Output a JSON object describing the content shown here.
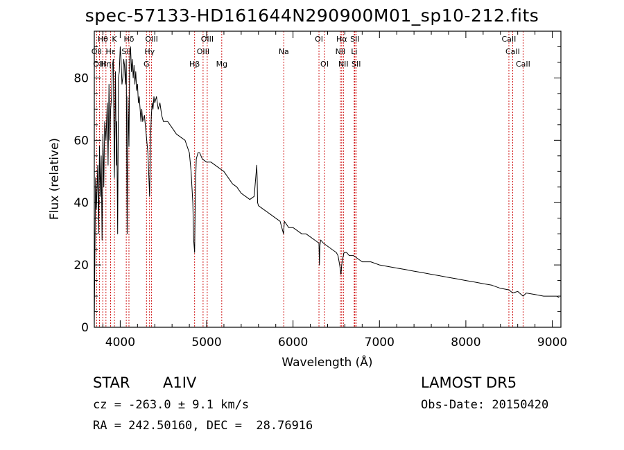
{
  "header": {
    "title": "spec-57133-HD161644N290900M01_sp10-212.fits"
  },
  "info": {
    "object_class": "STAR",
    "object_subclass": "A1IV",
    "survey": "LAMOST DR5",
    "redshift": "cz = -263.0 ± 9.1 km/s",
    "obs_date": "Obs-Date: 20150420",
    "coords": "RA = 242.50160, DEC =  28.76916"
  },
  "chart_data": {
    "type": "line",
    "title": "spec-57133-HD161644N290900M01_sp10-212.fits",
    "xlabel": "Wavelength (Å)",
    "ylabel": "Flux (relative)",
    "xlim": [
      3700,
      9100
    ],
    "ylim": [
      0,
      95
    ],
    "xticks": [
      4000,
      5000,
      6000,
      7000,
      8000,
      9000
    ],
    "yticks": [
      0,
      20,
      40,
      60,
      80
    ],
    "line_color": "#000000",
    "marker_color": "#cc0000",
    "series": [
      {
        "x": [
          3700,
          3715,
          3725,
          3740,
          3750,
          3760,
          3770,
          3780,
          3790,
          3800,
          3810,
          3820,
          3835,
          3850,
          3860,
          3870,
          3880,
          3889,
          3900,
          3910,
          3920,
          3933,
          3945,
          3955,
          3960,
          3970,
          3980,
          3990,
          4000,
          4010,
          4020,
          4030,
          4040,
          4050,
          4060,
          4070,
          4080,
          4090,
          4101,
          4110,
          4120,
          4130,
          4140,
          4150,
          4160,
          4170,
          4180,
          4190,
          4200,
          4210,
          4220,
          4230,
          4240,
          4250,
          4260,
          4280,
          4300,
          4320,
          4340,
          4350,
          4360,
          4370,
          4380,
          4390,
          4400,
          4420,
          4440,
          4460,
          4480,
          4500,
          4550,
          4600,
          4650,
          4700,
          4750,
          4800,
          4820,
          4840,
          4850,
          4861,
          4870,
          4880,
          4900,
          4920,
          4950,
          5000,
          5050,
          5100,
          5150,
          5200,
          5250,
          5300,
          5350,
          5400,
          5450,
          5500,
          5550,
          5580,
          5585,
          5590,
          5600,
          5650,
          5700,
          5750,
          5800,
          5850,
          5890,
          5900,
          5950,
          6000,
          6050,
          6100,
          6150,
          6200,
          6250,
          6300,
          6305,
          6310,
          6320,
          6350,
          6400,
          6450,
          6500,
          6520,
          6540,
          6555,
          6563,
          6575,
          6590,
          6620,
          6650,
          6700,
          6750,
          6800,
          6900,
          7000,
          7100,
          7200,
          7300,
          7400,
          7500,
          7600,
          7700,
          7800,
          7900,
          8000,
          8100,
          8200,
          8300,
          8400,
          8500,
          8542,
          8600,
          8662,
          8700,
          8800,
          8900,
          9000,
          9050,
          9080
        ],
        "y": [
          2,
          48,
          38,
          52,
          30,
          58,
          42,
          55,
          28,
          62,
          45,
          66,
          60,
          72,
          52,
          78,
          60,
          70,
          74,
          84,
          86,
          48,
          82,
          52,
          66,
          30,
          80,
          82,
          90,
          86,
          78,
          80,
          86,
          84,
          78,
          86,
          30,
          74,
          58,
          86,
          90,
          82,
          86,
          80,
          84,
          78,
          82,
          76,
          78,
          72,
          74,
          70,
          66,
          70,
          66,
          68,
          62,
          56,
          42,
          60,
          68,
          72,
          70,
          74,
          72,
          74,
          70,
          72,
          68,
          66,
          66,
          64,
          62,
          61,
          60,
          56,
          50,
          40,
          28,
          24,
          44,
          54,
          56,
          56,
          54,
          53,
          53,
          52,
          51,
          50,
          48,
          46,
          45,
          43,
          42,
          41,
          42,
          52,
          48,
          40,
          39,
          38,
          37,
          36,
          35,
          34,
          30,
          34,
          32,
          32,
          31,
          30,
          30,
          29,
          28,
          27,
          20,
          26,
          28,
          27,
          26,
          25,
          24,
          23,
          20,
          17,
          20,
          22,
          24,
          24,
          23,
          23,
          22,
          21,
          21,
          20,
          19.5,
          19,
          18.5,
          18,
          17.5,
          17,
          16.5,
          16,
          15.5,
          15,
          14.5,
          14,
          13.5,
          12.5,
          12,
          11,
          11.5,
          10,
          11,
          10.5,
          10,
          10,
          10,
          9.5
        ]
      }
    ],
    "lines": [
      {
        "label": "Hθ",
        "x": 3798,
        "row": 0
      },
      {
        "label": "OII",
        "x": 3727,
        "row": 1
      },
      {
        "label": "OIII",
        "x": 3760,
        "row": 2
      },
      {
        "label": "Hη",
        "x": 3835,
        "row": 2
      },
      {
        "label": "Hε",
        "x": 3889,
        "row": 1
      },
      {
        "label": "K",
        "x": 3933,
        "row": 0
      },
      {
        "label": "SII",
        "x": 4070,
        "row": 1
      },
      {
        "label": "Hδ",
        "x": 4101,
        "row": 0
      },
      {
        "label": "OIII",
        "x": 4363,
        "row": 0
      },
      {
        "label": "Hγ",
        "x": 4340,
        "row": 1
      },
      {
        "label": "G",
        "x": 4304,
        "row": 2
      },
      {
        "label": "Hβ",
        "x": 4861,
        "row": 2
      },
      {
        "label": "OIII",
        "x": 4959,
        "row": 1
      },
      {
        "label": "OIII",
        "x": 5007,
        "row": 0
      },
      {
        "label": "Mg",
        "x": 5175,
        "row": 2
      },
      {
        "label": "Na",
        "x": 5893,
        "row": 1
      },
      {
        "label": "OI",
        "x": 6300,
        "row": 0
      },
      {
        "label": "OI",
        "x": 6364,
        "row": 2
      },
      {
        "label": "NII",
        "x": 6548,
        "row": 1
      },
      {
        "label": "Hα",
        "x": 6563,
        "row": 0
      },
      {
        "label": "NII",
        "x": 6583,
        "row": 2
      },
      {
        "label": "SII",
        "x": 6716,
        "row": 0
      },
      {
        "label": "Li",
        "x": 6708,
        "row": 1
      },
      {
        "label": "SII",
        "x": 6731,
        "row": 2
      },
      {
        "label": "CaII",
        "x": 8498,
        "row": 0
      },
      {
        "label": "CaII",
        "x": 8542,
        "row": 1
      },
      {
        "label": "CaII",
        "x": 8662,
        "row": 2
      }
    ]
  }
}
